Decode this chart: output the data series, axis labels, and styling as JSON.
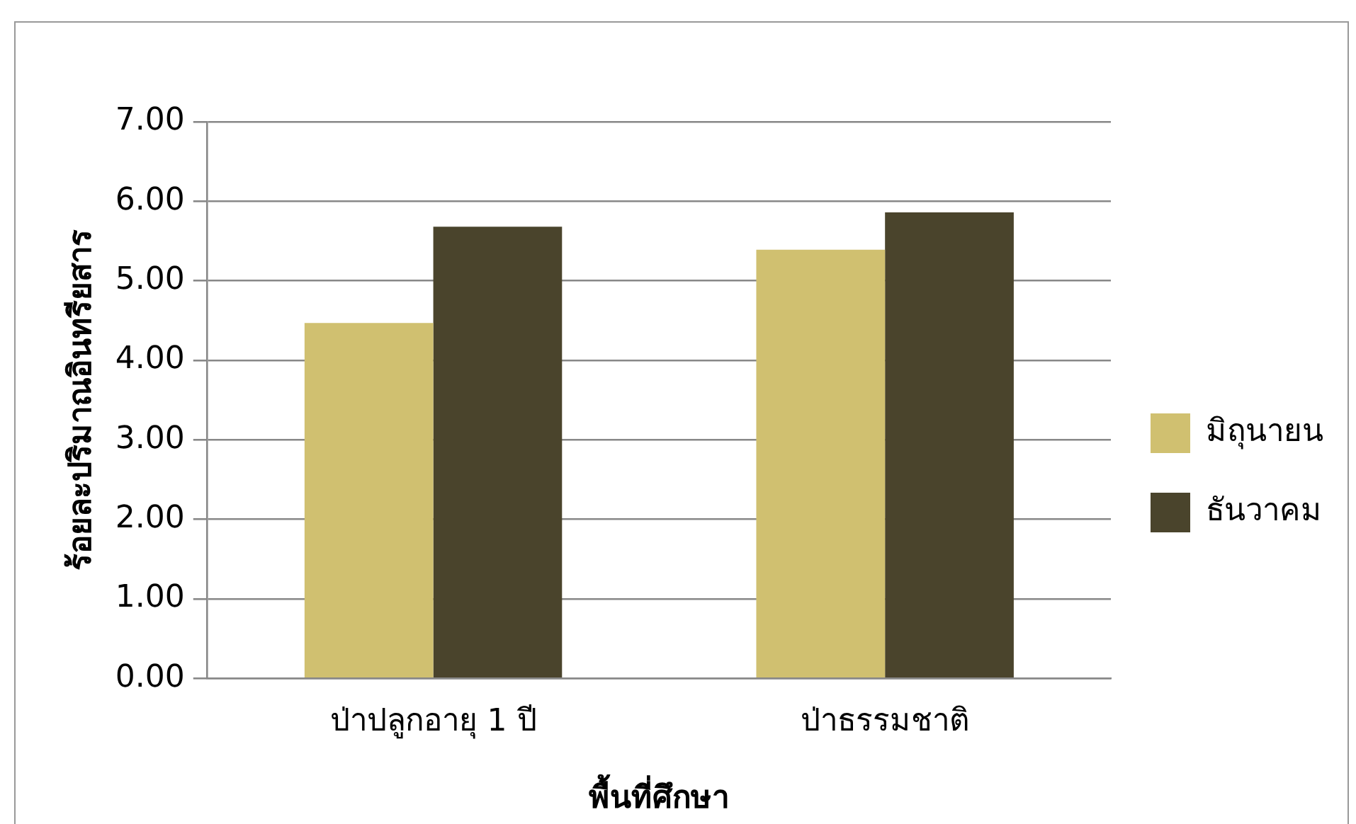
{
  "chart_data": {
    "type": "bar",
    "xlabel": "พื้นที่ศึกษา",
    "ylabel": "ร้อยละปริมาณอินทรียสาร",
    "categories": [
      "ป่าปลูกอายุ 1 ปี",
      "ป่าธรรมชาติ"
    ],
    "series": [
      {
        "name": "มิถุนายน",
        "color": "#d0c070",
        "values": [
          4.47,
          5.39
        ]
      },
      {
        "name": "ธันวาคม",
        "color": "#4a442c",
        "values": [
          5.68,
          5.86
        ]
      }
    ],
    "ylim": [
      0,
      7
    ],
    "yticks": [
      {
        "value": 0,
        "label": "0.00"
      },
      {
        "value": 1,
        "label": "1.00"
      },
      {
        "value": 2,
        "label": "2.00"
      },
      {
        "value": 3,
        "label": "3.00"
      },
      {
        "value": 4,
        "label": "4.00"
      },
      {
        "value": 5,
        "label": "5.00"
      },
      {
        "value": 6,
        "label": "6.00"
      },
      {
        "value": 7,
        "label": "7.00"
      }
    ],
    "grid": "y",
    "legend": "right"
  }
}
